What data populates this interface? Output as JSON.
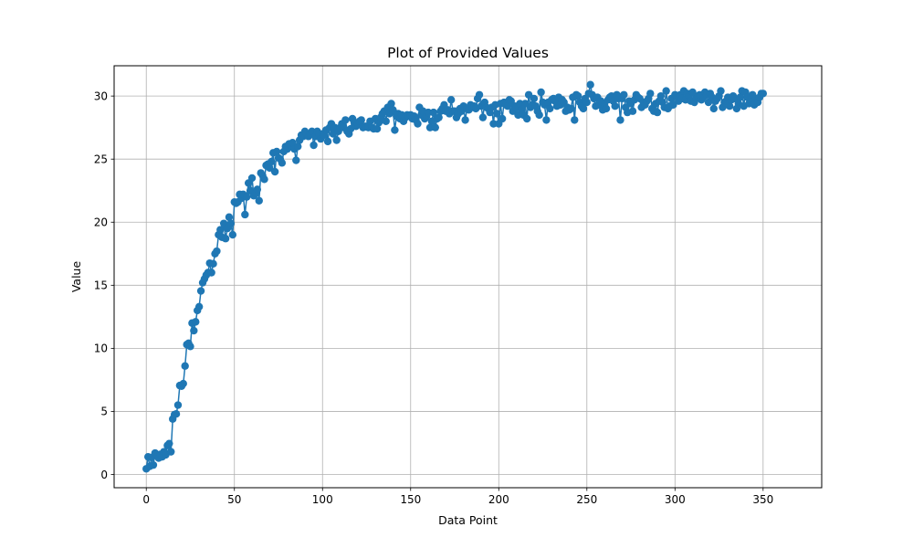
{
  "chart_data": {
    "type": "line",
    "title": "Plot of Provided Values",
    "xlabel": "Data Point",
    "ylabel": "Value",
    "xlim": [
      -18.25,
      383.25
    ],
    "ylim": [
      -1.05,
      32.4
    ],
    "xticks": [
      0,
      50,
      100,
      150,
      200,
      250,
      300,
      350
    ],
    "yticks": [
      0,
      5,
      10,
      15,
      20,
      25,
      30
    ],
    "grid": true,
    "legend": "none",
    "marker": "circle",
    "color": "#1f77b4",
    "series": [
      {
        "values": [
          0.45,
          1.4,
          0.65,
          1.35,
          0.75,
          1.7,
          1.55,
          1.3,
          1.6,
          1.4,
          1.8,
          1.55,
          2.3,
          2.45,
          1.8,
          4.4,
          4.75,
          4.8,
          5.5,
          7.05,
          7.0,
          7.2,
          8.6,
          10.3,
          10.4,
          10.15,
          12.0,
          11.4,
          12.1,
          13.0,
          13.3,
          14.55,
          15.2,
          15.5,
          15.8,
          16.0,
          16.75,
          16.0,
          16.7,
          17.5,
          17.7,
          19.0,
          19.4,
          18.8,
          19.9,
          18.7,
          19.5,
          20.4,
          19.9,
          19.0,
          21.6,
          21.5,
          21.6,
          22.2,
          21.9,
          22.2,
          20.6,
          22.0,
          23.1,
          22.5,
          23.5,
          22.1,
          22.3,
          22.6,
          21.7,
          23.9,
          23.7,
          23.4,
          24.5,
          24.6,
          24.3,
          24.8,
          25.5,
          24.0,
          25.6,
          25.1,
          25.0,
          24.7,
          25.6,
          26.0,
          25.8,
          26.2,
          26.1,
          26.3,
          25.8,
          24.9,
          26.0,
          26.5,
          26.9,
          26.8,
          27.2,
          27.0,
          26.8,
          27.0,
          27.2,
          26.1,
          26.8,
          27.2,
          27.0,
          26.6,
          27.0,
          26.9,
          27.3,
          26.4,
          27.5,
          27.8,
          27.0,
          27.5,
          26.5,
          27.2,
          27.5,
          27.8,
          27.5,
          28.1,
          27.2,
          27.0,
          27.4,
          28.2,
          27.9,
          27.6,
          27.8,
          28.0,
          28.1,
          27.5,
          27.6,
          27.6,
          27.5,
          28.0,
          27.5,
          27.4,
          28.2,
          27.4,
          27.9,
          28.3,
          28.6,
          28.8,
          28.0,
          29.1,
          28.6,
          29.4,
          28.9,
          27.3,
          28.4,
          28.6,
          28.2,
          28.5,
          28.0,
          28.3,
          28.5,
          28.4,
          28.5,
          28.2,
          28.4,
          28.1,
          27.8,
          29.1,
          28.5,
          28.8,
          28.2,
          28.4,
          28.7,
          27.5,
          28.0,
          28.7,
          27.5,
          28.2,
          28.3,
          28.8,
          29.0,
          29.3,
          28.8,
          28.9,
          28.6,
          29.7,
          28.8,
          28.8,
          28.3,
          28.6,
          29.0,
          28.8,
          29.2,
          28.1,
          29.0,
          28.9,
          29.3,
          29.1,
          29.2,
          29.0,
          29.8,
          30.1,
          29.2,
          28.3,
          29.5,
          29.1,
          29.0,
          28.7,
          29.1,
          27.8,
          29.3,
          28.6,
          27.8,
          29.4,
          28.2,
          29.5,
          29.3,
          29.2,
          29.7,
          29.6,
          28.8,
          29.2,
          29.1,
          28.5,
          29.4,
          28.9,
          28.5,
          29.4,
          28.2,
          30.1,
          29.1,
          29.3,
          29.8,
          29.2,
          28.8,
          28.5,
          30.3,
          29.5,
          29.3,
          28.1,
          29.5,
          29.0,
          29.7,
          29.8,
          29.6,
          29.2,
          29.9,
          29.3,
          29.7,
          29.5,
          28.8,
          29.1,
          28.9,
          29.0,
          29.9,
          28.1,
          30.1,
          30.0,
          29.5,
          29.2,
          29.0,
          29.8,
          29.5,
          30.2,
          30.9,
          30.1,
          29.8,
          29.2,
          29.9,
          29.3,
          29.6,
          28.9,
          29.3,
          29.0,
          29.7,
          29.9,
          30.0,
          29.6,
          29.2,
          30.1,
          29.8,
          28.1,
          29.8,
          30.1,
          29.1,
          28.7,
          29.6,
          29.4,
          28.8,
          29.7,
          30.1,
          29.9,
          29.8,
          29.1,
          29.5,
          29.3,
          29.6,
          29.8,
          30.2,
          29.0,
          28.8,
          29.4,
          28.7,
          29.6,
          30.0,
          29.5,
          29.1,
          30.4,
          29.0,
          29.2,
          29.8,
          29.3,
          30.1,
          30.0,
          29.6,
          30.1,
          29.8,
          30.4,
          29.7,
          30.2,
          30.0,
          29.6,
          30.3,
          29.5,
          29.8,
          30.0,
          30.1,
          29.7,
          29.9,
          30.3,
          30.1,
          29.5,
          30.2,
          29.9,
          29.0,
          29.6,
          29.8,
          30.0,
          30.4,
          29.1,
          29.5,
          29.6,
          29.9,
          29.2,
          29.7,
          30.0,
          29.8,
          29.0,
          29.4,
          29.9,
          30.4,
          29.2,
          30.3,
          29.9,
          29.4,
          29.6,
          30.1,
          29.3,
          29.8,
          29.5,
          29.9,
          30.2,
          30.2
        ]
      }
    ]
  }
}
